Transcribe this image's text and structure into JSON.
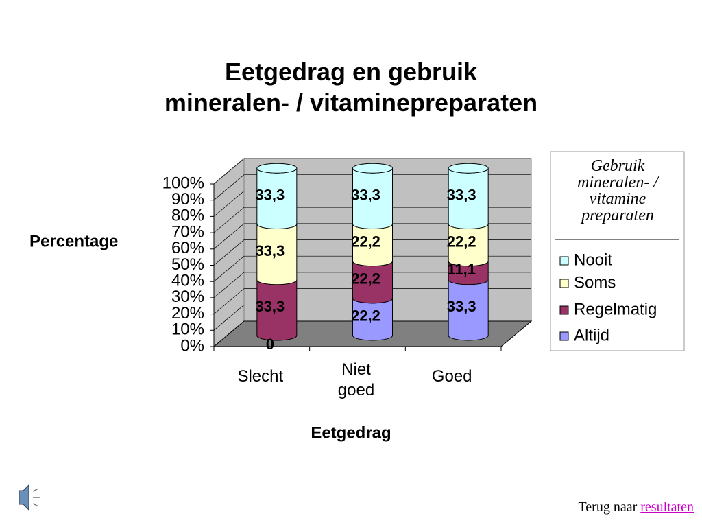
{
  "chart_data": {
    "type": "bar3d_stacked_percent",
    "title": "Eetgedrag en gebruik\nmineralen- / vitaminepreparaten",
    "x_label": "Eetgedrag",
    "y_label": "Percentage",
    "legend_title": "Gebruik\nmineralen- /\nvitamine\npreparaten",
    "categories": [
      "Slecht",
      "Niet\ngoed",
      "Goed"
    ],
    "series": [
      {
        "name": "Altijd",
        "color": "#9999ff",
        "values": [
          0,
          22.2,
          33.3
        ],
        "value_labels": [
          "0",
          "22,2",
          "33,3"
        ]
      },
      {
        "name": "Regelmatig",
        "color": "#993366",
        "values": [
          33.3,
          22.2,
          11.1
        ],
        "value_labels": [
          "33,3",
          "22,2",
          "11,1"
        ]
      },
      {
        "name": "Soms",
        "color": "#ffffcc",
        "values": [
          33.3,
          22.2,
          22.2
        ],
        "value_labels": [
          "33,3",
          "22,2",
          "22,2"
        ]
      },
      {
        "name": "Nooit",
        "color": "#ccffff",
        "values": [
          33.3,
          33.3,
          33.3
        ],
        "value_labels": [
          "33,3",
          "33,3",
          "33,3"
        ]
      }
    ],
    "ylim": [
      0,
      100
    ],
    "yticks": [
      {
        "value": 0,
        "label": "0%"
      },
      {
        "value": 10,
        "label": "10%"
      },
      {
        "value": 20,
        "label": "20%"
      },
      {
        "value": 30,
        "label": "30%"
      },
      {
        "value": 40,
        "label": "40%"
      },
      {
        "value": 50,
        "label": "50%"
      },
      {
        "value": 60,
        "label": "60%"
      },
      {
        "value": 70,
        "label": "70%"
      },
      {
        "value": 80,
        "label": "80%"
      },
      {
        "value": 90,
        "label": "90%"
      },
      {
        "value": 100,
        "label": "100%"
      }
    ],
    "grid": true,
    "legend": "right"
  },
  "footer": {
    "text": "Terug naar ",
    "link": "resultaten"
  }
}
